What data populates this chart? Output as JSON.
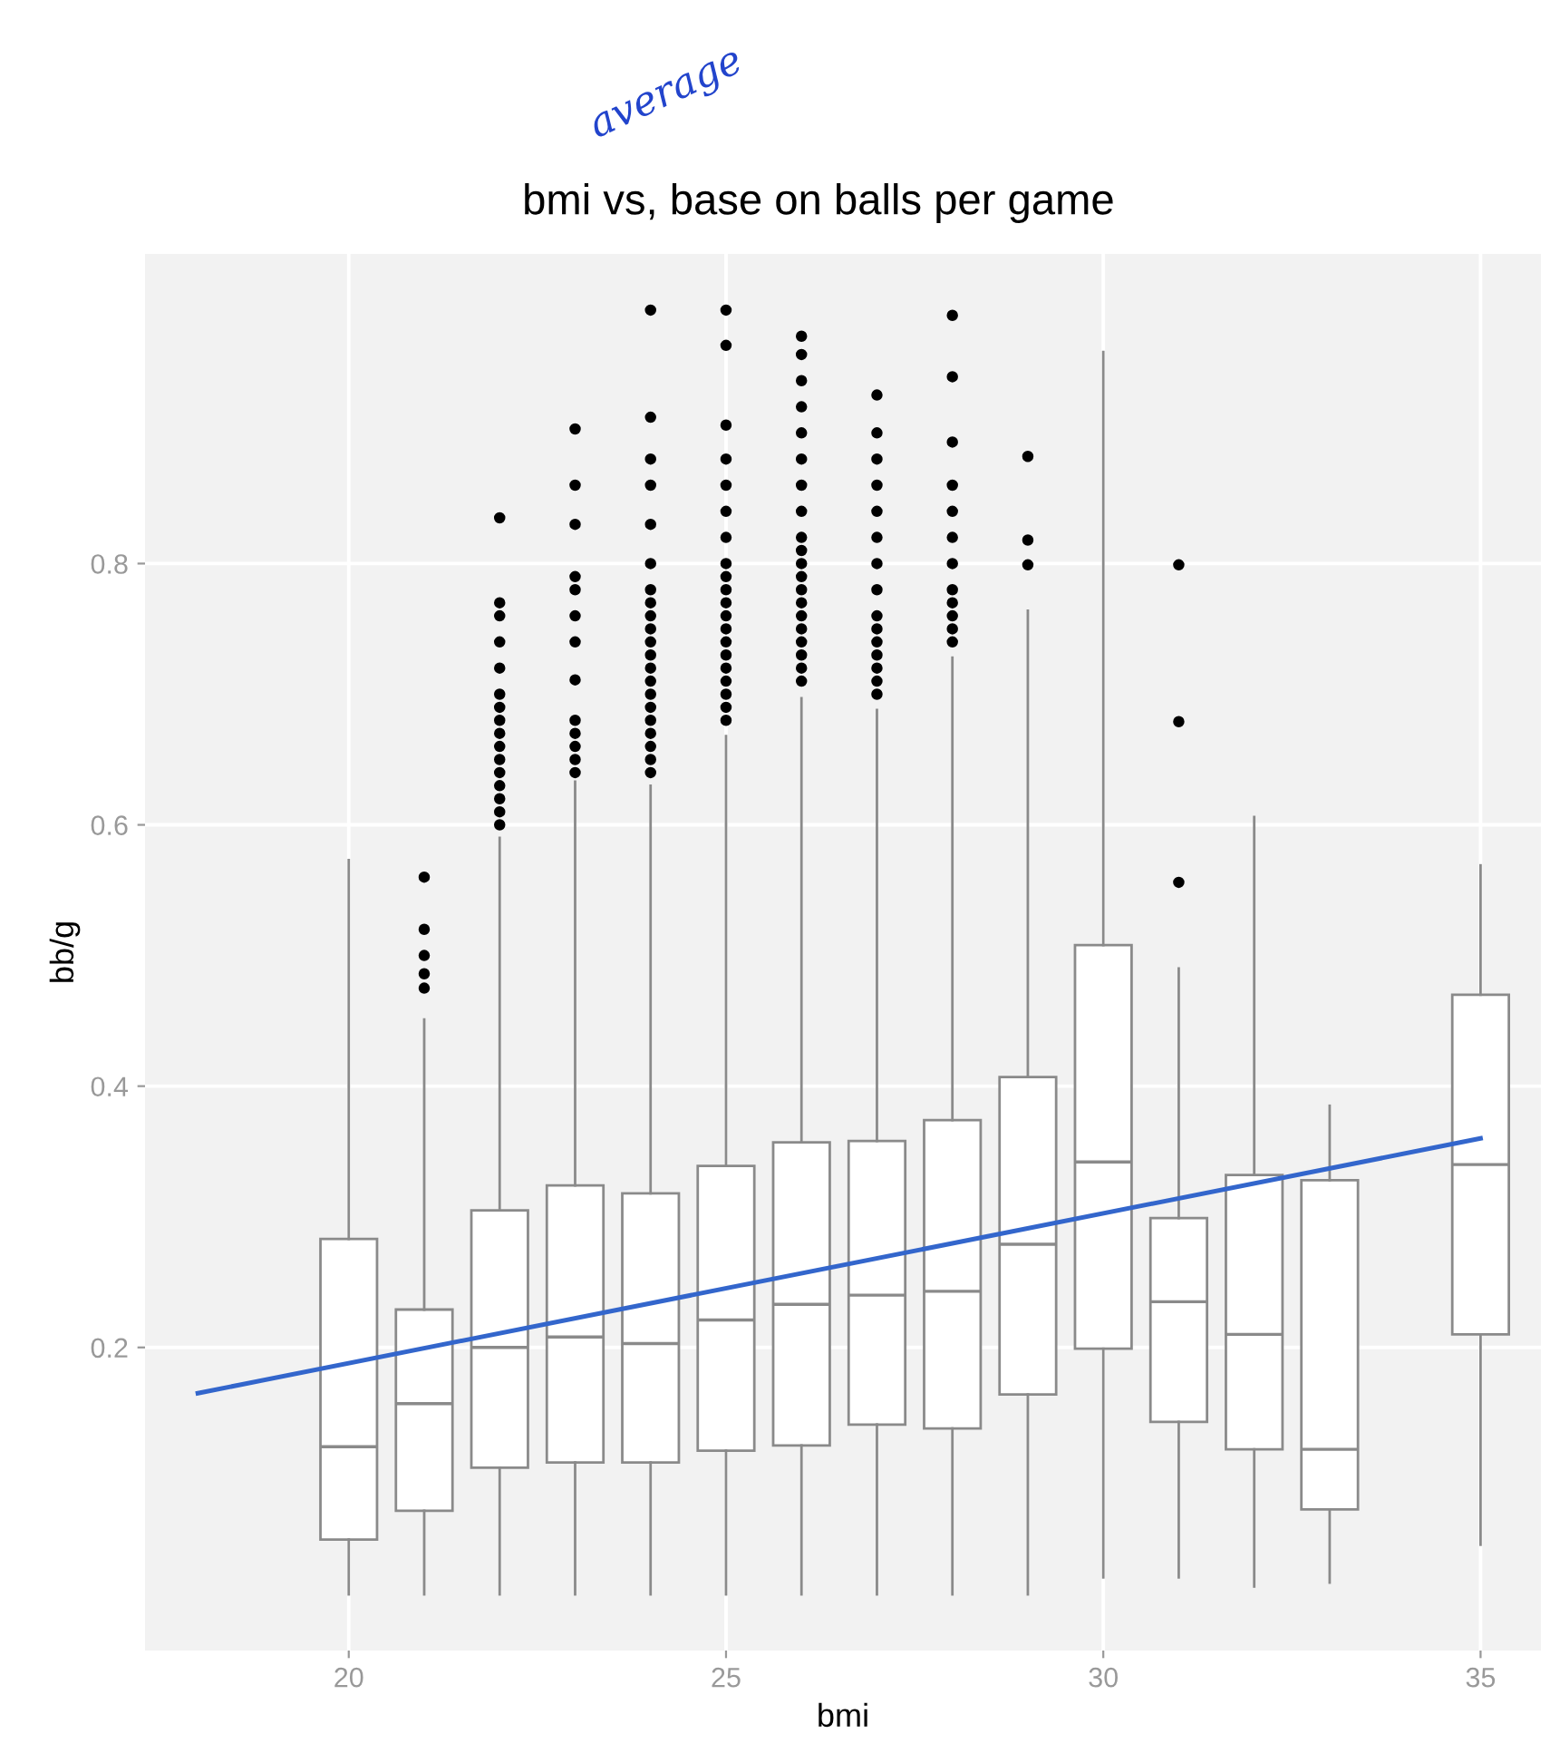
{
  "chart_data": {
    "type": "box",
    "title": "bmi vs, base on balls per game",
    "xlabel": "bmi",
    "ylabel": "bb/g",
    "annotations": [
      "average"
    ],
    "x": [
      20,
      21,
      22,
      23,
      24,
      25,
      26,
      27,
      28,
      29,
      30,
      31,
      32,
      33,
      35
    ],
    "xlim": [
      17.3,
      35.8
    ],
    "xticks": [
      20,
      25,
      30,
      35
    ],
    "ylim": [
      -0.032,
      1.037
    ],
    "yticks": [
      0.2,
      0.4,
      0.6,
      0.8
    ],
    "grid": true,
    "boxes": [
      {
        "low": 0.011,
        "q1": 0.053,
        "median": 0.124,
        "q3": 0.283,
        "high": 0.573
      },
      {
        "low": 0.011,
        "q1": 0.075,
        "median": 0.157,
        "q3": 0.229,
        "high": 0.451,
        "outliers": [
          0.475,
          0.486,
          0.5,
          0.52,
          0.56
        ]
      },
      {
        "low": 0.011,
        "q1": 0.108,
        "median": 0.2,
        "q3": 0.305,
        "high": 0.59,
        "outliers": [
          0.6,
          0.61,
          0.62,
          0.63,
          0.64,
          0.65,
          0.66,
          0.67,
          0.68,
          0.69,
          0.7,
          0.72,
          0.74,
          0.76,
          0.77,
          0.835
        ]
      },
      {
        "low": 0.011,
        "q1": 0.112,
        "median": 0.208,
        "q3": 0.324,
        "high": 0.633,
        "outliers": [
          0.64,
          0.65,
          0.66,
          0.67,
          0.68,
          0.711,
          0.74,
          0.76,
          0.78,
          0.79,
          0.83,
          0.86,
          0.903
        ]
      },
      {
        "low": 0.011,
        "q1": 0.112,
        "median": 0.203,
        "q3": 0.318,
        "high": 0.63,
        "outliers": [
          0.64,
          0.65,
          0.66,
          0.67,
          0.68,
          0.69,
          0.7,
          0.71,
          0.72,
          0.73,
          0.74,
          0.75,
          0.76,
          0.77,
          0.78,
          0.8,
          0.83,
          0.86,
          0.88,
          0.912,
          0.994
        ]
      },
      {
        "low": 0.011,
        "q1": 0.121,
        "median": 0.221,
        "q3": 0.339,
        "high": 0.668,
        "outliers": [
          0.68,
          0.69,
          0.7,
          0.71,
          0.72,
          0.73,
          0.74,
          0.75,
          0.76,
          0.77,
          0.78,
          0.79,
          0.8,
          0.82,
          0.84,
          0.86,
          0.88,
          0.906,
          0.967,
          0.994
        ]
      },
      {
        "low": 0.011,
        "q1": 0.125,
        "median": 0.233,
        "q3": 0.357,
        "high": 0.697,
        "outliers": [
          0.71,
          0.72,
          0.73,
          0.74,
          0.75,
          0.76,
          0.77,
          0.78,
          0.79,
          0.8,
          0.81,
          0.82,
          0.84,
          0.86,
          0.88,
          0.9,
          0.92,
          0.94,
          0.96,
          0.974
        ]
      },
      {
        "low": 0.011,
        "q1": 0.141,
        "median": 0.24,
        "q3": 0.358,
        "high": 0.688,
        "outliers": [
          0.7,
          0.71,
          0.72,
          0.73,
          0.74,
          0.75,
          0.76,
          0.78,
          0.8,
          0.82,
          0.84,
          0.86,
          0.88,
          0.9,
          0.929
        ]
      },
      {
        "low": 0.011,
        "q1": 0.138,
        "median": 0.243,
        "q3": 0.374,
        "high": 0.728,
        "outliers": [
          0.74,
          0.75,
          0.76,
          0.77,
          0.78,
          0.8,
          0.82,
          0.84,
          0.86,
          0.893,
          0.943,
          0.99
        ]
      },
      {
        "low": 0.011,
        "q1": 0.164,
        "median": 0.279,
        "q3": 0.407,
        "high": 0.764,
        "outliers": [
          0.799,
          0.818,
          0.882
        ]
      },
      {
        "low": 0.024,
        "q1": 0.199,
        "median": 0.342,
        "q3": 0.508,
        "high": 0.962
      },
      {
        "low": 0.024,
        "q1": 0.143,
        "median": 0.235,
        "q3": 0.299,
        "high": 0.49,
        "outliers": [
          0.556,
          0.679,
          0.799
        ]
      },
      {
        "low": 0.017,
        "q1": 0.122,
        "median": 0.21,
        "q3": 0.332,
        "high": 0.606
      },
      {
        "low": 0.02,
        "q1": 0.076,
        "median": 0.122,
        "q3": 0.328,
        "high": 0.385
      },
      {
        "low": 0.049,
        "q1": 0.21,
        "median": 0.34,
        "q3": 0.47,
        "high": 0.569
      }
    ],
    "series": [
      {
        "type": "line",
        "color": "#3366cc",
        "x": [
          18,
          35
        ],
        "values": [
          0.165,
          0.36
        ]
      }
    ]
  }
}
